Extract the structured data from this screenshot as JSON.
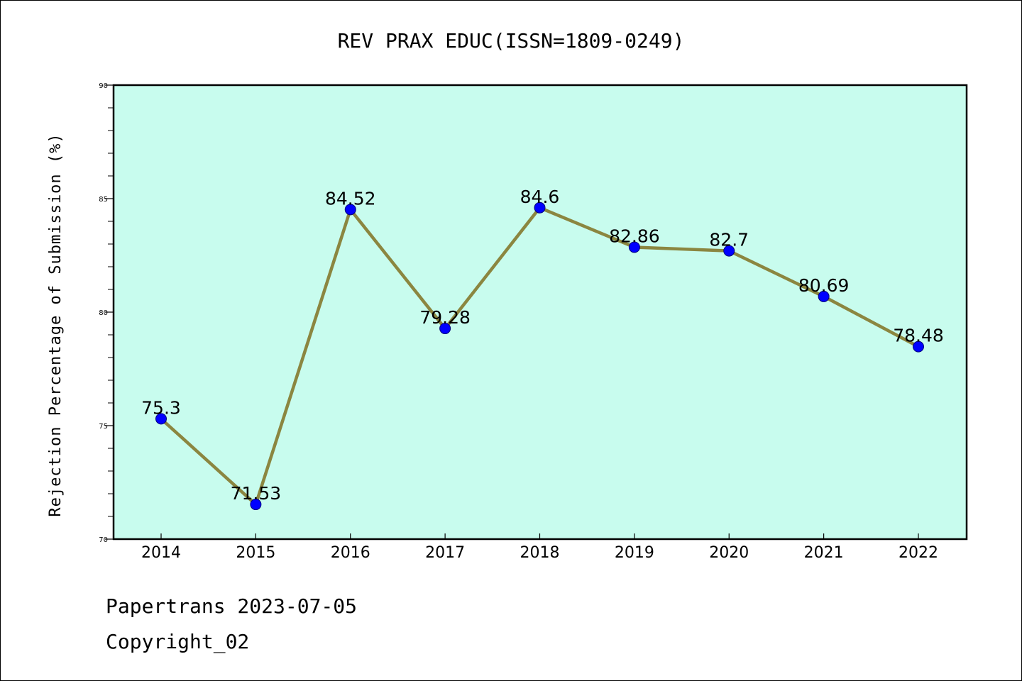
{
  "chart_data": {
    "type": "line",
    "title": "REV PRAX EDUC(ISSN=1809-0249)",
    "xlabel": "",
    "ylabel": "Rejection Percentage of Submission (%)",
    "categories": [
      "2014",
      "2015",
      "2016",
      "2017",
      "2018",
      "2019",
      "2020",
      "2021",
      "2022"
    ],
    "series": [
      {
        "values": [
          75.3,
          71.53,
          84.52,
          79.28,
          84.6,
          82.86,
          82.7,
          80.69,
          78.48
        ],
        "labels": [
          "75.3",
          "71.53",
          "84.52",
          "79.28",
          "84.6",
          "82.86",
          "82.7",
          "80.69",
          "78.48"
        ]
      }
    ],
    "ylim": [
      70,
      90
    ],
    "yticks": [
      "70",
      "75",
      "80",
      "85",
      "90"
    ],
    "grid": false,
    "colors": {
      "plot_background": "#c8fcee",
      "line": "#8b8640",
      "marker": "#0000ff"
    }
  },
  "footer": {
    "line1": "Papertrans 2023-07-05",
    "line2": "Copyright_02"
  }
}
